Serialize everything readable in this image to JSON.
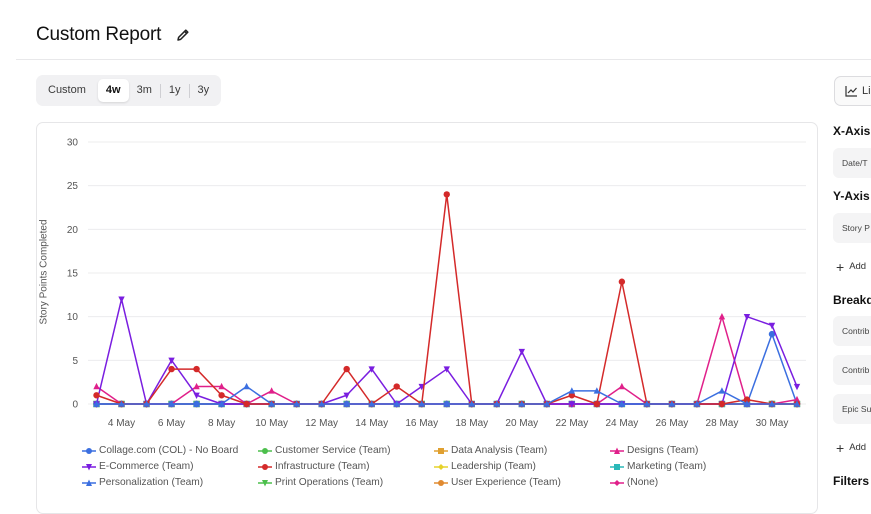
{
  "header": {
    "title": "Custom Report"
  },
  "range_tabs": [
    {
      "label": "Custom",
      "active": false
    },
    {
      "label": "4w",
      "active": true
    },
    {
      "label": "3m",
      "active": false
    },
    {
      "label": "1y",
      "active": false
    },
    {
      "label": "3y",
      "active": false
    }
  ],
  "sidebar": {
    "chart_type_label": "Li",
    "x_axis_title": "X-Axis",
    "x_axis_value": "Date/T",
    "y_axis_title": "Y-Axis",
    "y_axis_value": "Story P",
    "add_label": "Add",
    "breakdown_title": "Breakd",
    "breakdown_values": [
      "Contrib",
      "Contrib",
      "Epic Su"
    ],
    "add2_label": "Add",
    "filters_title": "Filters"
  },
  "chart_data": {
    "type": "line",
    "ylabel": "Story Points Completed",
    "xlabel": "",
    "ylim": [
      0,
      30
    ],
    "yticks": [
      0,
      5,
      10,
      15,
      20,
      25,
      30
    ],
    "xtick_labels": [
      "4 May",
      "6 May",
      "8 May",
      "10 May",
      "12 May",
      "14 May",
      "16 May",
      "18 May",
      "20 May",
      "22 May",
      "24 May",
      "26 May",
      "28 May",
      "30 May"
    ],
    "x": [
      "3 May",
      "4 May",
      "5 May",
      "6 May",
      "7 May",
      "8 May",
      "9 May",
      "10 May",
      "11 May",
      "12 May",
      "13 May",
      "14 May",
      "15 May",
      "16 May",
      "17 May",
      "18 May",
      "19 May",
      "20 May",
      "21 May",
      "22 May",
      "23 May",
      "24 May",
      "25 May",
      "26 May",
      "27 May",
      "28 May",
      "29 May",
      "30 May",
      "31 May"
    ],
    "series": [
      {
        "name": "Collage.com (COL) - No Board",
        "color": "#3b6fe0",
        "marker": "circle",
        "values": [
          0,
          0,
          0,
          0,
          0,
          0,
          0,
          0,
          0,
          0,
          0,
          0,
          0,
          0,
          0,
          0,
          0,
          0,
          0,
          0,
          0,
          0,
          0,
          0,
          0,
          0,
          0,
          8,
          0
        ]
      },
      {
        "name": "Customer Service (Team)",
        "color": "#4cbf4c",
        "marker": "circle",
        "values": [
          0,
          0,
          0,
          0,
          0,
          0,
          0,
          0,
          0,
          0,
          0,
          0,
          0,
          0,
          0,
          0,
          0,
          0,
          0,
          0,
          0,
          0,
          0,
          0,
          0,
          0,
          0,
          0,
          0
        ]
      },
      {
        "name": "Data Analysis (Team)",
        "color": "#e0a030",
        "marker": "square",
        "values": [
          0,
          0,
          0,
          0,
          0,
          0,
          0,
          0,
          0,
          0,
          0,
          0,
          0,
          0,
          0,
          0,
          0,
          0,
          0,
          0,
          0,
          0,
          0,
          0,
          0,
          0,
          0,
          0,
          0
        ]
      },
      {
        "name": "Designs (Team)",
        "color": "#e0208a",
        "marker": "triangle",
        "values": [
          2,
          0,
          0,
          0,
          2,
          2,
          0,
          1.5,
          0,
          0,
          0,
          0,
          0,
          0,
          0,
          0,
          0,
          0,
          0,
          0,
          0,
          2,
          0,
          0,
          0,
          10,
          0,
          0,
          0.5
        ]
      },
      {
        "name": "E-Commerce (Team)",
        "color": "#7a1ee0",
        "marker": "triangle-down",
        "values": [
          0,
          12,
          0,
          5,
          1,
          0,
          0,
          0,
          0,
          0,
          1,
          4,
          0,
          2,
          4,
          0,
          0,
          6,
          0,
          0,
          0,
          0,
          0,
          0,
          0,
          0,
          10,
          9,
          2
        ]
      },
      {
        "name": "Infrastructure (Team)",
        "color": "#d42a2a",
        "marker": "circle",
        "values": [
          1,
          0,
          0,
          4,
          4,
          1,
          0,
          0,
          0,
          0,
          4,
          0,
          2,
          0,
          24,
          0,
          0,
          0,
          0,
          1,
          0,
          14,
          0,
          0,
          0,
          0,
          0.5,
          0,
          0
        ]
      },
      {
        "name": "Leadership (Team)",
        "color": "#e6d22a",
        "marker": "diamond",
        "values": [
          0,
          0,
          0,
          0,
          0,
          0,
          0,
          0,
          0,
          0,
          0,
          0,
          0,
          0,
          0,
          0,
          0,
          0,
          0,
          0,
          0,
          0,
          0,
          0,
          0,
          0,
          0,
          0,
          0
        ]
      },
      {
        "name": "Marketing (Team)",
        "color": "#2ab8b8",
        "marker": "square",
        "values": [
          0,
          0,
          0,
          0,
          0,
          0,
          0,
          0,
          0,
          0,
          0,
          0,
          0,
          0,
          0,
          0,
          0,
          0,
          0,
          0,
          0,
          0,
          0,
          0,
          0,
          0,
          0,
          0,
          0
        ]
      },
      {
        "name": "Personalization (Team)",
        "color": "#3b6fe0",
        "marker": "triangle",
        "values": [
          0,
          0,
          0,
          0,
          0,
          0,
          2,
          0,
          0,
          0,
          0,
          0,
          0,
          0,
          0,
          0,
          0,
          0,
          0,
          1.5,
          1.5,
          0,
          0,
          0,
          0,
          1.5,
          0,
          0,
          0
        ]
      },
      {
        "name": "Print Operations (Team)",
        "color": "#4cbf4c",
        "marker": "triangle-down",
        "values": [
          0,
          0,
          0,
          0,
          0,
          0,
          0,
          0,
          0,
          0,
          0,
          0,
          0,
          0,
          0,
          0,
          0,
          0,
          0,
          0,
          0,
          0,
          0,
          0,
          0,
          0,
          0,
          0,
          0
        ]
      },
      {
        "name": "User Experience (Team)",
        "color": "#e08a30",
        "marker": "circle",
        "values": [
          0,
          0,
          0,
          0,
          0,
          0,
          0,
          0,
          0,
          0,
          0,
          0,
          0,
          0,
          0,
          0,
          0,
          0,
          0,
          0,
          0,
          0,
          0,
          0,
          0,
          0,
          0,
          0,
          0
        ]
      },
      {
        "name": "(None)",
        "color": "#e0208a",
        "marker": "diamond",
        "values": [
          0,
          0,
          0,
          0,
          0,
          0,
          0,
          0,
          0,
          0,
          0,
          0,
          0,
          0,
          0,
          0,
          0,
          0,
          0,
          0,
          0,
          0,
          0,
          0,
          0,
          0,
          0,
          0,
          0
        ]
      }
    ],
    "grid": true,
    "legend_position": "bottom"
  }
}
